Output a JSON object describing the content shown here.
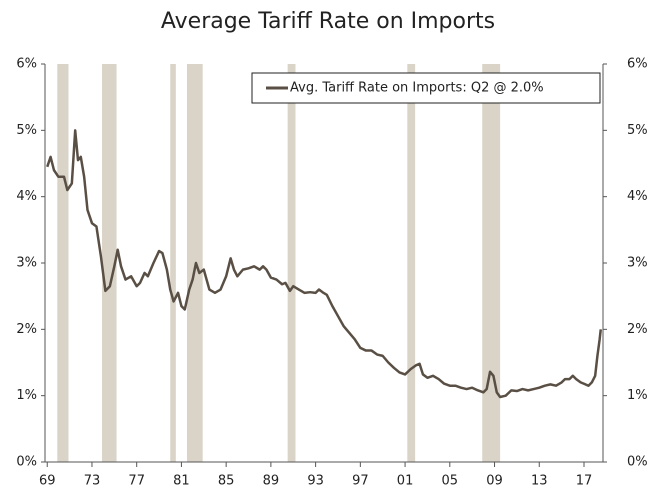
{
  "chart_data": {
    "type": "line",
    "title": "Average Tariff Rate on Imports",
    "x": [
      1969.0,
      1969.3,
      1969.6,
      1970.0,
      1970.5,
      1970.8,
      1971.2,
      1971.5,
      1971.75,
      1972.0,
      1972.3,
      1972.6,
      1973.0,
      1973.4,
      1973.8,
      1974.2,
      1974.6,
      1975.0,
      1975.3,
      1975.6,
      1976.0,
      1976.5,
      1977.0,
      1977.3,
      1977.7,
      1978.0,
      1978.5,
      1979.0,
      1979.3,
      1979.7,
      1980.0,
      1980.3,
      1980.7,
      1981.0,
      1981.3,
      1981.7,
      1982.0,
      1982.3,
      1982.6,
      1983.0,
      1983.5,
      1984.0,
      1984.5,
      1985.0,
      1985.4,
      1985.7,
      1986.0,
      1986.5,
      1987.0,
      1987.5,
      1988.0,
      1988.3,
      1988.6,
      1989.0,
      1989.5,
      1990.0,
      1990.3,
      1990.7,
      1991.0,
      1991.5,
      1992.0,
      1992.5,
      1993.0,
      1993.3,
      1993.7,
      1994.0,
      1994.5,
      1995.0,
      1995.5,
      1996.0,
      1996.5,
      1997.0,
      1997.5,
      1998.0,
      1998.5,
      1999.0,
      1999.5,
      2000.0,
      2000.5,
      2001.0,
      2001.5,
      2002.0,
      2002.3,
      2002.6,
      2003.0,
      2003.5,
      2004.0,
      2004.5,
      2005.0,
      2005.5,
      2006.0,
      2006.5,
      2007.0,
      2007.5,
      2008.0,
      2008.3,
      2008.6,
      2008.9,
      2009.2,
      2009.5,
      2010.0,
      2010.5,
      2011.0,
      2011.5,
      2012.0,
      2012.5,
      2013.0,
      2013.5,
      2014.0,
      2014.5,
      2015.0,
      2015.3,
      2015.7,
      2016.0,
      2016.3,
      2016.7,
      2017.0,
      2017.4,
      2017.7,
      2018.0,
      2018.2,
      2018.4,
      2018.5
    ],
    "series": [
      {
        "name": "Avg. Tariff Rate on Imports: Q2 @ 2.0%",
        "color": "#594f44",
        "values": [
          4.45,
          4.6,
          4.4,
          4.3,
          4.3,
          4.1,
          4.2,
          5.0,
          4.55,
          4.6,
          4.3,
          3.8,
          3.6,
          3.55,
          3.1,
          2.58,
          2.65,
          2.95,
          3.2,
          2.95,
          2.75,
          2.8,
          2.65,
          2.7,
          2.85,
          2.8,
          3.0,
          3.18,
          3.15,
          2.9,
          2.6,
          2.42,
          2.55,
          2.35,
          2.3,
          2.6,
          2.75,
          3.0,
          2.85,
          2.9,
          2.6,
          2.55,
          2.6,
          2.8,
          3.07,
          2.9,
          2.8,
          2.9,
          2.92,
          2.95,
          2.9,
          2.95,
          2.9,
          2.78,
          2.75,
          2.68,
          2.7,
          2.58,
          2.65,
          2.6,
          2.55,
          2.56,
          2.55,
          2.6,
          2.55,
          2.52,
          2.35,
          2.2,
          2.05,
          1.95,
          1.85,
          1.72,
          1.68,
          1.68,
          1.62,
          1.6,
          1.5,
          1.42,
          1.35,
          1.32,
          1.4,
          1.46,
          1.48,
          1.32,
          1.27,
          1.3,
          1.25,
          1.18,
          1.15,
          1.15,
          1.12,
          1.1,
          1.12,
          1.08,
          1.05,
          1.1,
          1.36,
          1.3,
          1.05,
          0.98,
          1.0,
          1.08,
          1.07,
          1.1,
          1.08,
          1.1,
          1.12,
          1.15,
          1.17,
          1.15,
          1.2,
          1.25,
          1.25,
          1.3,
          1.25,
          1.2,
          1.18,
          1.15,
          1.2,
          1.3,
          1.6,
          1.85,
          2.0
        ]
      }
    ],
    "recessions": [
      [
        1969.9,
        1970.9
      ],
      [
        1973.9,
        1975.2
      ],
      [
        1980.0,
        1980.5
      ],
      [
        1981.5,
        1982.9
      ],
      [
        1990.5,
        1991.2
      ],
      [
        2001.2,
        2001.9
      ],
      [
        2007.9,
        2009.5
      ]
    ],
    "recession_color": "#d9d4c7",
    "xlim": [
      1968.8,
      2018.7
    ],
    "xticks": [
      {
        "value": 1969,
        "label": "69"
      },
      {
        "value": 1973,
        "label": "73"
      },
      {
        "value": 1977,
        "label": "77"
      },
      {
        "value": 1981,
        "label": "81"
      },
      {
        "value": 1985,
        "label": "85"
      },
      {
        "value": 1989,
        "label": "89"
      },
      {
        "value": 1993,
        "label": "93"
      },
      {
        "value": 1997,
        "label": "97"
      },
      {
        "value": 2001,
        "label": "01"
      },
      {
        "value": 2005,
        "label": "05"
      },
      {
        "value": 2009,
        "label": "09"
      },
      {
        "value": 2013,
        "label": "13"
      },
      {
        "value": 2017,
        "label": "17"
      }
    ],
    "ylim": [
      0,
      6
    ],
    "yticks": [
      {
        "value": 0,
        "label": "0%"
      },
      {
        "value": 1,
        "label": "1%"
      },
      {
        "value": 2,
        "label": "2%"
      },
      {
        "value": 3,
        "label": "3%"
      },
      {
        "value": 4,
        "label": "4%"
      },
      {
        "value": 5,
        "label": "5%"
      },
      {
        "value": 6,
        "label": "6%"
      }
    ],
    "y2lim": [
      0,
      6
    ],
    "y2ticks": [
      {
        "value": 0,
        "label": "0%"
      },
      {
        "value": 1,
        "label": "1%"
      },
      {
        "value": 2,
        "label": "2%"
      },
      {
        "value": 3,
        "label": "3%"
      },
      {
        "value": 4,
        "label": "4%"
      },
      {
        "value": 5,
        "label": "5%"
      },
      {
        "value": 6,
        "label": "6%"
      }
    ],
    "legend": "upper right"
  }
}
